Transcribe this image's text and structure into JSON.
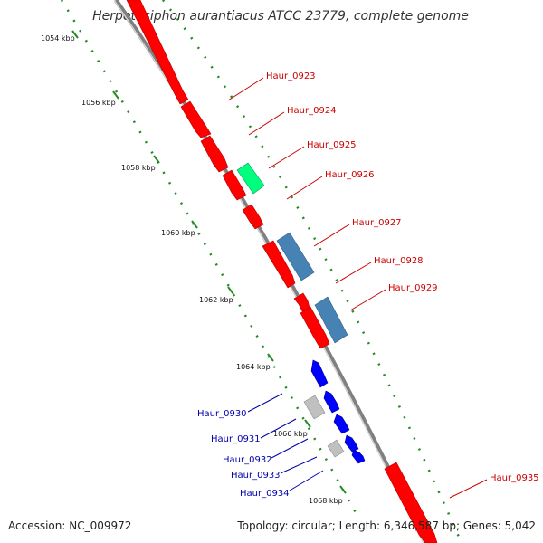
{
  "title": "Herpetosiphon aurantiacus ATCC 23779, complete genome",
  "footer": {
    "accession": "Accession: NC_009972",
    "summary": "Topology: circular; Length: 6,346,587 bp; Genes: 5,042"
  },
  "colors": {
    "forward_gene": "#ff0000",
    "reverse_gene": "#0000ff",
    "rna": "#4682b4",
    "cds_other": "#00ff7f",
    "pseudo": "#c0c0c0",
    "tick": "#228b22",
    "backbone": "#808080",
    "label_forward": "#cc0000",
    "label_reverse": "#0000aa"
  },
  "ticks": [
    "1054 kbp",
    "1056 kbp",
    "1058 kbp",
    "1060 kbp",
    "1062 kbp",
    "1064 kbp",
    "1066 kbp",
    "1068 kbp"
  ],
  "genes_labels": {
    "haur_0923": "Haur_0923",
    "haur_0924": "Haur_0924",
    "haur_0925": "Haur_0925",
    "haur_0926": "Haur_0926",
    "haur_0927": "Haur_0927",
    "haur_0928": "Haur_0928",
    "haur_0929": "Haur_0929",
    "haur_0930": "Haur_0930",
    "haur_0931": "Haur_0931",
    "haur_0932": "Haur_0932",
    "haur_0933": "Haur_0933",
    "haur_0934": "Haur_0934",
    "haur_0935": "Haur_0935"
  }
}
